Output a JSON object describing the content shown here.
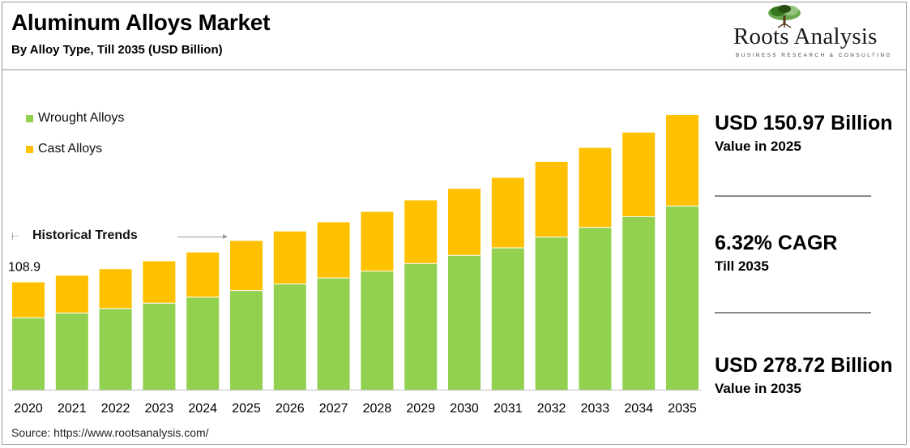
{
  "title": "Aluminum Alloys Market",
  "subtitle": "By Alloy Type, Till 2035 (USD Billion)",
  "logo": {
    "name": "Roots Analysis",
    "tagline": "BUSINESS RESEARCH & CONSULTING",
    "icon": "tree-icon"
  },
  "annotation": {
    "historical_label": "Historical Trends",
    "first_value_label": "108.9"
  },
  "stats": [
    {
      "big": "USD 150.97 Billion",
      "small": "Value in 2025"
    },
    {
      "big": "6.32% CAGR",
      "small": "Till 2035"
    },
    {
      "big": "USD 278.72 Billion",
      "small": "Value in 2035"
    }
  ],
  "source": "Source: https://www.rootsanalysis.com/",
  "colors": {
    "wrought": "#92d050",
    "cast": "#ffc000"
  },
  "chart_data": {
    "type": "bar",
    "stacked": true,
    "categories": [
      "2020",
      "2021",
      "2022",
      "2023",
      "2024",
      "2025",
      "2026",
      "2027",
      "2028",
      "2029",
      "2030",
      "2031",
      "2032",
      "2033",
      "2034",
      "2035"
    ],
    "series": [
      {
        "name": "Wrought Alloys",
        "values": [
          72.9,
          77.8,
          82.3,
          87.8,
          93.8,
          100.6,
          107.3,
          113.4,
          120.2,
          128.0,
          136.2,
          143.9,
          154.9,
          164.7,
          175.6,
          186.5
        ]
      },
      {
        "name": "Cast Alloys",
        "values": [
          36.0,
          38.0,
          40.0,
          42.5,
          45.5,
          50.4,
          53.3,
          56.5,
          60.3,
          64.1,
          67.8,
          71.1,
          76.2,
          80.7,
          85.4,
          92.2
        ]
      }
    ],
    "totals": [
      108.9,
      115.8,
      122.3,
      130.3,
      139.3,
      151.0,
      160.6,
      169.9,
      180.5,
      192.1,
      204.0,
      215.0,
      231.1,
      245.4,
      261.0,
      278.7
    ],
    "data_labels": [
      {
        "category": "2020",
        "text": "108.9"
      }
    ],
    "ylim": [
      0,
      278.72
    ],
    "xlabel": "",
    "ylabel": "",
    "legend_position": "top-left",
    "grid": false
  }
}
